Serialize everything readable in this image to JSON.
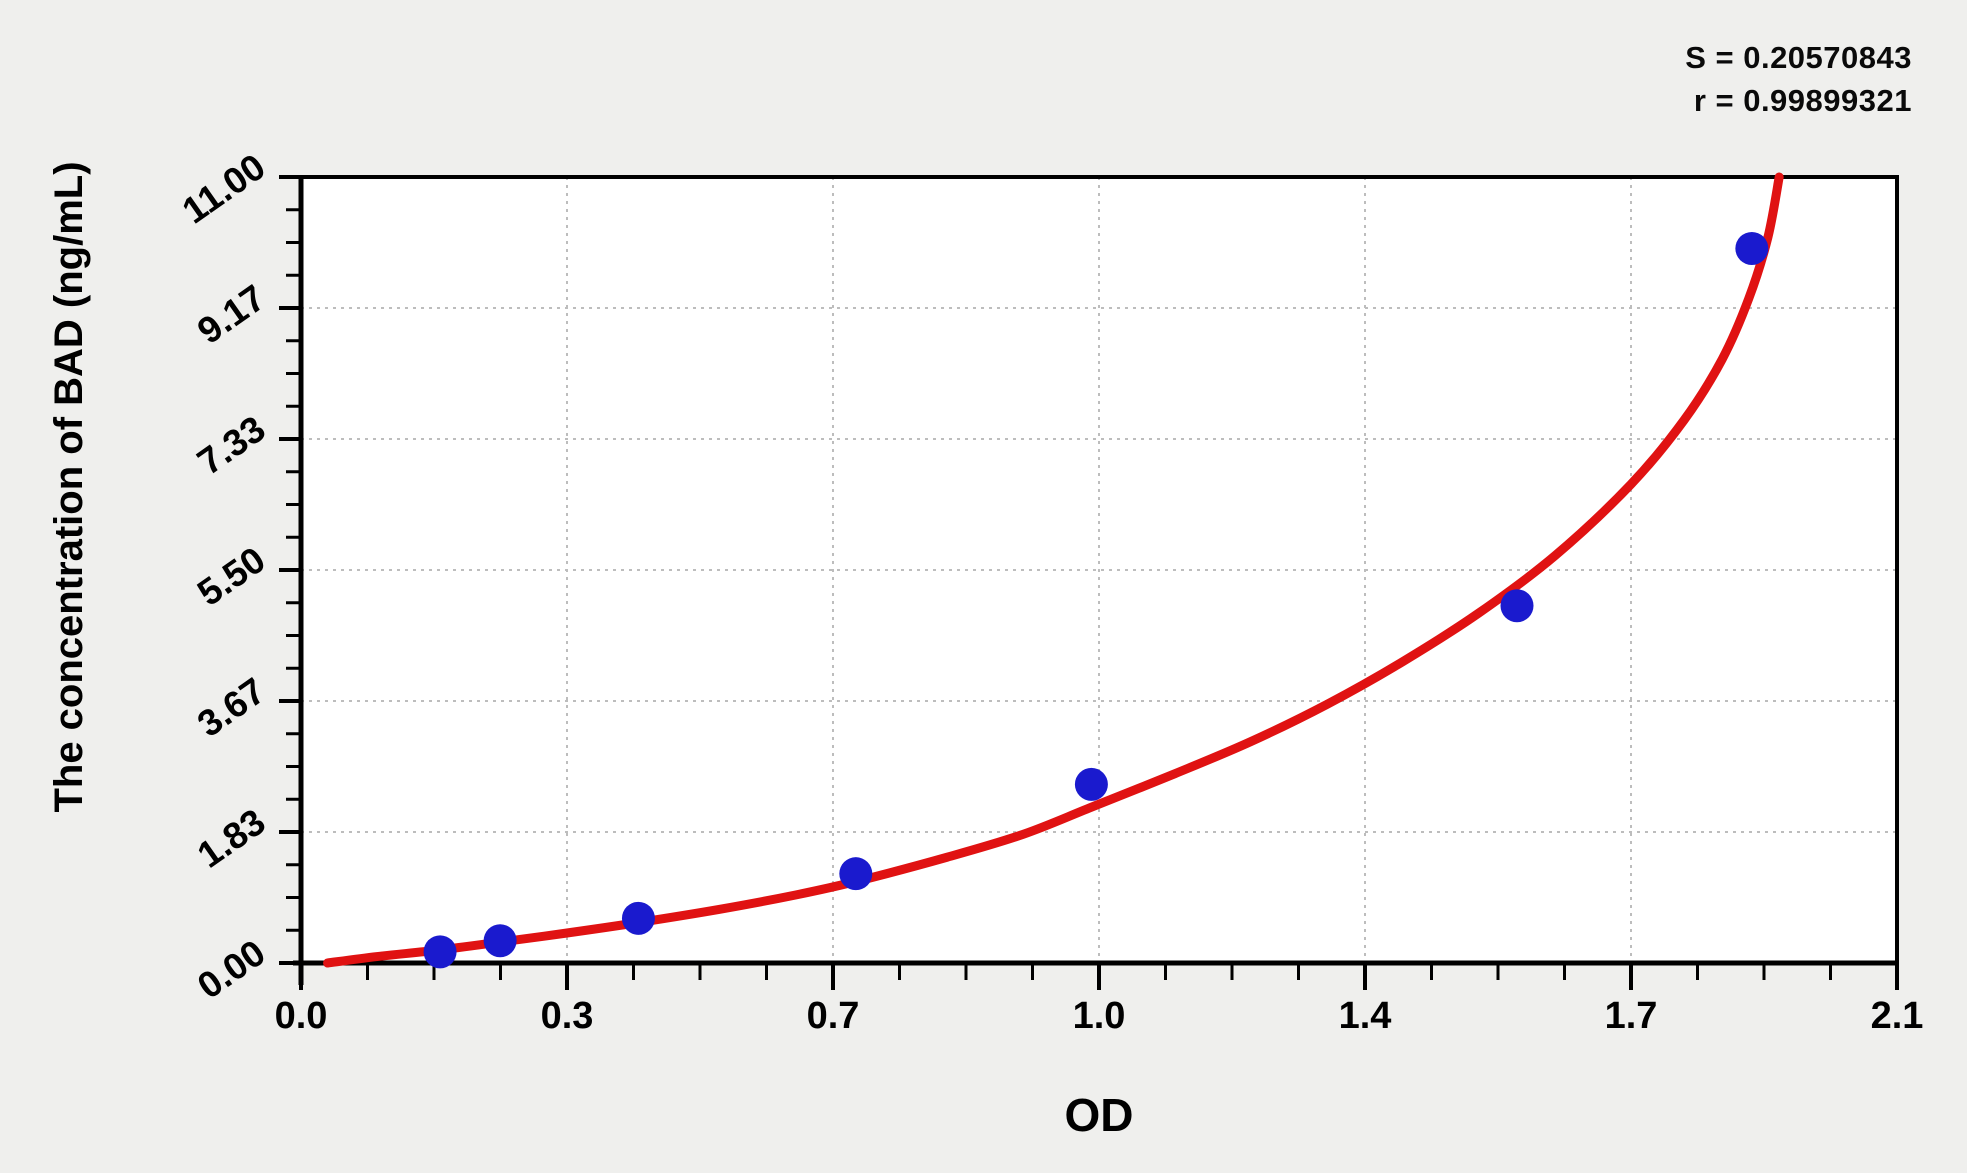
{
  "page": {
    "background": "#efefed"
  },
  "annotations": {
    "s_label": "S = 0.20570843",
    "r_label": "r = 0.99899321"
  },
  "chart_data": {
    "type": "scatter",
    "title": "",
    "xlabel": "OD",
    "ylabel": "The concentration of BAD (ng/mL)",
    "x_axis": {
      "min": 0,
      "max": 2.1,
      "major_step": 0.35,
      "minor_divisions": 4,
      "tick_labels": [
        "0.0",
        "0.3",
        "0.7",
        "1.0",
        "1.4",
        "1.7",
        "2.1"
      ]
    },
    "y_axis": {
      "min": 0,
      "max": 11,
      "major_step": 1.833333,
      "minor_divisions": 4,
      "tick_labels": [
        "0.00",
        "1.83",
        "3.67",
        "5.50",
        "7.33",
        "9.17",
        "11.00"
      ]
    },
    "grid": "dashed",
    "legend": "none",
    "points": {
      "x": [
        0.183,
        0.262,
        0.444,
        0.73,
        1.04,
        1.6,
        1.909
      ],
      "y": [
        0.156,
        0.312,
        0.625,
        1.25,
        2.5,
        5.0,
        10.0
      ]
    },
    "fit_curve": [
      [
        0.035,
        0.0
      ],
      [
        0.1,
        0.09
      ],
      [
        0.18,
        0.18
      ],
      [
        0.26,
        0.29
      ],
      [
        0.35,
        0.42
      ],
      [
        0.44,
        0.56
      ],
      [
        0.55,
        0.75
      ],
      [
        0.65,
        0.95
      ],
      [
        0.73,
        1.14
      ],
      [
        0.85,
        1.48
      ],
      [
        0.95,
        1.8
      ],
      [
        1.04,
        2.18
      ],
      [
        1.15,
        2.65
      ],
      [
        1.25,
        3.1
      ],
      [
        1.35,
        3.62
      ],
      [
        1.45,
        4.22
      ],
      [
        1.55,
        4.9
      ],
      [
        1.65,
        5.7
      ],
      [
        1.75,
        6.7
      ],
      [
        1.82,
        7.6
      ],
      [
        1.87,
        8.45
      ],
      [
        1.905,
        9.3
      ],
      [
        1.93,
        10.15
      ],
      [
        1.945,
        11.0
      ]
    ],
    "colors": {
      "point": "#1a1ace",
      "curve": "#e01212",
      "grid": "#bdbdbd",
      "axis": "#000000",
      "plot_bg": "#ffffff"
    }
  }
}
